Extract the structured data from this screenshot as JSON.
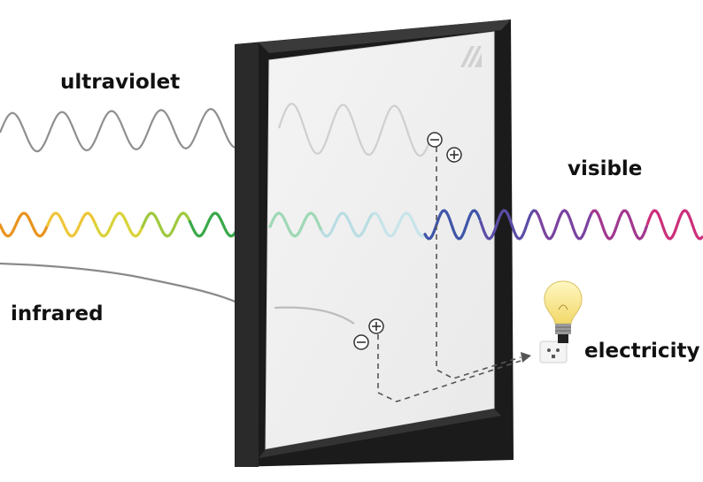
{
  "labels": {
    "ultraviolet": "ultraviolet",
    "visible": "visible",
    "infrared": "infrared",
    "electricity": "electricity"
  },
  "waves": {
    "ultraviolet": {
      "outside_color": "#8f8f8f",
      "inside_color": "#cfcfcf"
    },
    "infrared": {
      "outside_color": "#8a8a8a",
      "inside_color": "#bdbdbd"
    },
    "visible": {
      "incoming_colors": [
        "#e8941e",
        "#efc63a",
        "#d9d33a",
        "#9fc93d",
        "#3aa84a"
      ],
      "inside_colors": [
        "#9fd8b5",
        "#b9dde3",
        "#c7e4ea"
      ],
      "outgoing_colors": [
        "#3f55a8",
        "#5a4ea6",
        "#7a43a0",
        "#a2388f",
        "#cc2f7b"
      ]
    }
  },
  "icons": {
    "panel_logo": "solar-window-logo-icon",
    "terminal_minus": "minus-terminal-icon",
    "terminal_plus": "plus-terminal-icon",
    "light_bulb": "light-bulb-icon",
    "power_outlet": "power-outlet-icon"
  },
  "colors": {
    "frame": "#1b1b1b",
    "glass": "#f1f1f1",
    "wire": "#555555",
    "text": "#111111"
  }
}
